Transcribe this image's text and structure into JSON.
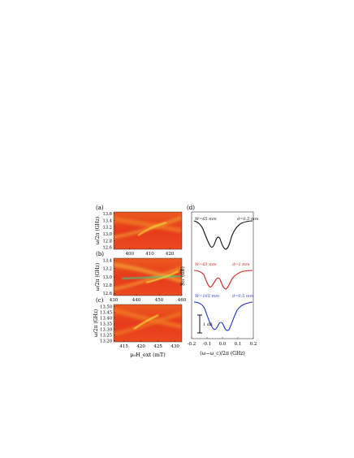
{
  "figure": {
    "panel_labels": [
      "(a)",
      "(b)",
      "(c)",
      "(d)"
    ],
    "heatmap_ylabel_ab": "ω/2π (GHz)",
    "heatmap_ylabel_c": "ω/2π (GHz)",
    "heatmap_xlabel": "μ₀H_ext (mT)",
    "spectra_ylabel": "S₂₁ (dB)",
    "spectra_xlabel": "(ω−ω_c)/2π (GHz)",
    "scale_bar_label": "1 dB",
    "colors": {
      "heatmap_bg": "#e8321e",
      "heatmap_mid": "#f07a20",
      "heatmap_line": "#f6e23a",
      "heatmap_core": "#3ecf8a",
      "trace_1": "#111111",
      "trace_2": "#d0201a",
      "trace_3": "#1f2fc4"
    }
  },
  "chart_data": [
    {
      "type": "heatmap",
      "panel": "(a)",
      "xlabel": "",
      "ylabel": "ω/2π (GHz)",
      "xlim": [
        392,
        426
      ],
      "ylim": [
        12.55,
        13.65
      ],
      "xticks": [
        400,
        410,
        420
      ],
      "yticks": [
        12.6,
        12.8,
        13.0,
        13.2,
        13.4,
        13.6
      ],
      "cavity_mode_GHz": 13.1
    },
    {
      "type": "heatmap",
      "panel": "(b)",
      "xlabel": "",
      "ylabel": "ω/2π (GHz)",
      "xlim": [
        430,
        460
      ],
      "ylim": [
        12.55,
        13.45
      ],
      "xticks": [
        430,
        440,
        450,
        460
      ],
      "yticks": [
        12.6,
        12.8,
        13.0,
        13.2,
        13.4
      ],
      "cavity_mode_GHz": 12.95
    },
    {
      "type": "heatmap",
      "panel": "(c)",
      "xlabel": "μ₀H_ext (mT)",
      "ylabel": "ω/2π (GHz)",
      "xlim": [
        412,
        432
      ],
      "ylim": [
        13.19,
        13.52
      ],
      "xticks": [
        415,
        420,
        425,
        430
      ],
      "yticks": [
        13.2,
        13.25,
        13.3,
        13.35,
        13.4,
        13.45,
        13.5
      ],
      "cavity_mode_GHz": 13.345
    },
    {
      "type": "line",
      "panel": "(d)",
      "xlabel": "(ω−ω_c)/2π (GHz)",
      "ylabel": "S₂₁ (dB)",
      "xlim": [
        -0.2,
        0.2
      ],
      "xticks": [
        -0.2,
        -0.1,
        0.0,
        0.1,
        0.2
      ],
      "series_labels": [
        {
          "left": "W=65 mm",
          "right": "d=0.5 mm"
        },
        {
          "left": "W=65 mm",
          "right": "d=1 mm"
        },
        {
          "left": "W=165 mm",
          "right": "d=0.5 mm"
        }
      ]
    }
  ]
}
